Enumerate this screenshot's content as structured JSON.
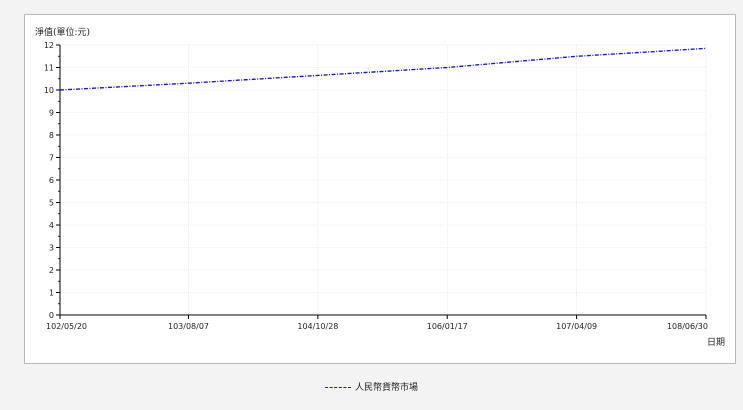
{
  "chart_data": {
    "type": "line",
    "ylabel": "淨值(單位:元)",
    "xlabel": "日期",
    "ylim": [
      0,
      12
    ],
    "yticks": [
      0,
      1,
      2,
      3,
      4,
      5,
      6,
      7,
      8,
      9,
      10,
      11,
      12
    ],
    "xlim": [
      "102/05/20",
      "108/06/30"
    ],
    "xtick_labels": [
      "102/05/20",
      "103/08/07",
      "104/10/28",
      "106/01/17",
      "107/04/09",
      "108/06/30"
    ],
    "grid": true,
    "legend_position": "bottom",
    "series": [
      {
        "name": "人民幣貨幣市場",
        "color": "#1a1ac8",
        "x": [
          "102/05/20",
          "103/08/07",
          "104/10/28",
          "106/01/17",
          "107/04/09",
          "108/06/30"
        ],
        "y": [
          10.0,
          10.3,
          10.65,
          11.0,
          11.5,
          11.85
        ]
      }
    ]
  }
}
